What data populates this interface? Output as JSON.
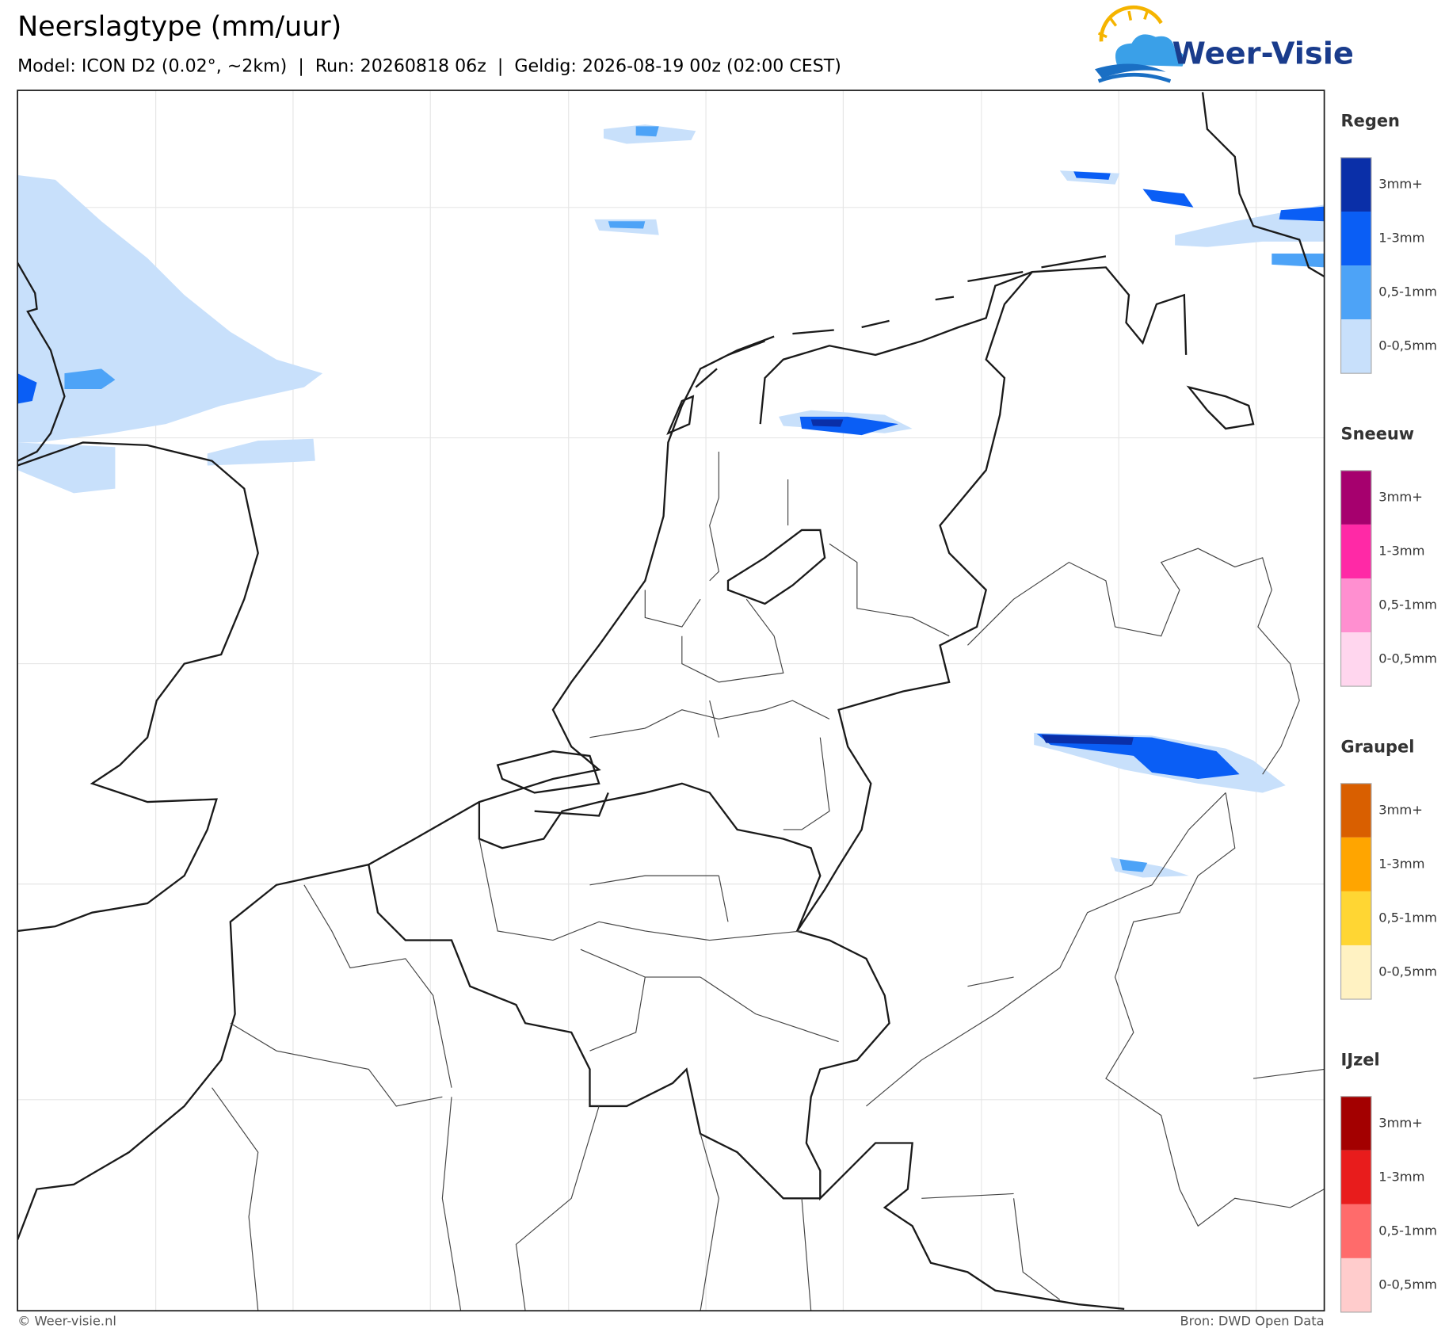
{
  "header": {
    "title": "Neerslagtype (mm/uur)",
    "subtitle": "Model: ICON D2 (0.02°, ~2km)  |  Run: 20260818 06z  |  Geldig: 2026-08-19 00z (02:00 CEST)"
  },
  "logo": {
    "text": "Weer-Visie"
  },
  "legend": [
    {
      "title": "Regen",
      "items": [
        {
          "label": "3mm+",
          "color": "#0a2fa8"
        },
        {
          "label": "1-3mm",
          "color": "#0a5ef5"
        },
        {
          "label": "0,5-1mm",
          "color": "#4da3f7"
        },
        {
          "label": "0-0,5mm",
          "color": "#c8e0fb"
        }
      ]
    },
    {
      "title": "Sneeuw",
      "items": [
        {
          "label": "3mm+",
          "color": "#a6006e"
        },
        {
          "label": "1-3mm",
          "color": "#ff29a6"
        },
        {
          "label": "0,5-1mm",
          "color": "#ff8fd0"
        },
        {
          "label": "0-0,5mm",
          "color": "#ffd6ee"
        }
      ]
    },
    {
      "title": "Graupel",
      "items": [
        {
          "label": "3mm+",
          "color": "#d95f00"
        },
        {
          "label": "1-3mm",
          "color": "#ffa500"
        },
        {
          "label": "0,5-1mm",
          "color": "#ffd633"
        },
        {
          "label": "0-0,5mm",
          "color": "#fff2c2"
        }
      ]
    },
    {
      "title": "IJzel",
      "items": [
        {
          "label": "3mm+",
          "color": "#a30000"
        },
        {
          "label": "1-3mm",
          "color": "#e81c1c"
        },
        {
          "label": "0,5-1mm",
          "color": "#ff6b6b"
        },
        {
          "label": "0-0,5mm",
          "color": "#ffcccc"
        }
      ]
    }
  ],
  "footer": {
    "left": "© Weer-visie.nl",
    "right": "Bron: DWD Open Data"
  }
}
